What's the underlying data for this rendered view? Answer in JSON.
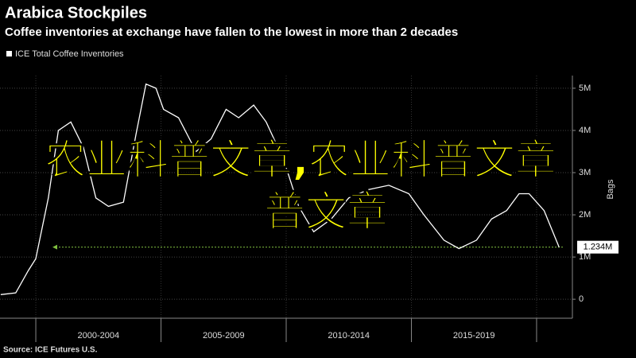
{
  "chart_data": {
    "type": "line",
    "title": "Arabica Stockpiles",
    "subtitle": "Coffee inventories at exchange have fallen to the lowest in more than 2 decades",
    "y_label": "Bags",
    "source": "Source: ICE Futures U.S.",
    "overlay_lines": [
      "农业科普文章,农业科普文章",
      "普文章"
    ],
    "x": [
      1998.6,
      1999.2,
      1999.7,
      2000.0,
      2000.5,
      2000.9,
      2001.4,
      2001.9,
      2002.4,
      2002.9,
      2003.5,
      2004.0,
      2004.4,
      2004.8,
      2005.1,
      2005.7,
      2006.4,
      2007.0,
      2007.6,
      2008.1,
      2008.7,
      2009.2,
      2009.9,
      2010.5,
      2011.1,
      2011.8,
      2012.5,
      2013.3,
      2014.1,
      2014.9,
      2015.5,
      2016.3,
      2016.9,
      2017.6,
      2018.2,
      2018.8,
      2019.3,
      2019.7,
      2020.3,
      2020.9
    ],
    "series": [
      {
        "name": "ICE Total Coffee Inventories",
        "color": "#ffffff",
        "values": [
          0.11,
          0.15,
          0.68,
          0.96,
          2.4,
          4.0,
          4.2,
          3.6,
          2.4,
          2.2,
          2.3,
          3.9,
          5.1,
          5.0,
          4.5,
          4.3,
          3.5,
          3.8,
          4.5,
          4.3,
          4.6,
          4.2,
          3.3,
          2.2,
          1.6,
          1.9,
          2.4,
          2.6,
          2.7,
          2.5,
          2.0,
          1.4,
          1.2,
          1.4,
          1.9,
          2.1,
          2.5,
          2.5,
          2.1,
          1.234
        ]
      }
    ],
    "last_value": {
      "value": 1.234,
      "label": "1.234M",
      "color": "#7fbf3f"
    },
    "xlim": [
      1998.57,
      2021.43
    ],
    "xticks": [
      2000,
      2005,
      2010,
      2015,
      2020
    ],
    "period_labels": [
      "2000-2004",
      "2005-2009",
      "2010-2014",
      "2015-2019"
    ],
    "ylim": [
      -0.45,
      5.3
    ],
    "yticks": [
      0,
      {
        "value": 1,
        "label": "1M"
      },
      {
        "value": 2,
        "label": "2M"
      },
      {
        "value": 3,
        "label": "3M"
      },
      {
        "value": 4,
        "label": "4M"
      },
      {
        "value": 5,
        "label": "5M"
      }
    ],
    "grid": true
  }
}
